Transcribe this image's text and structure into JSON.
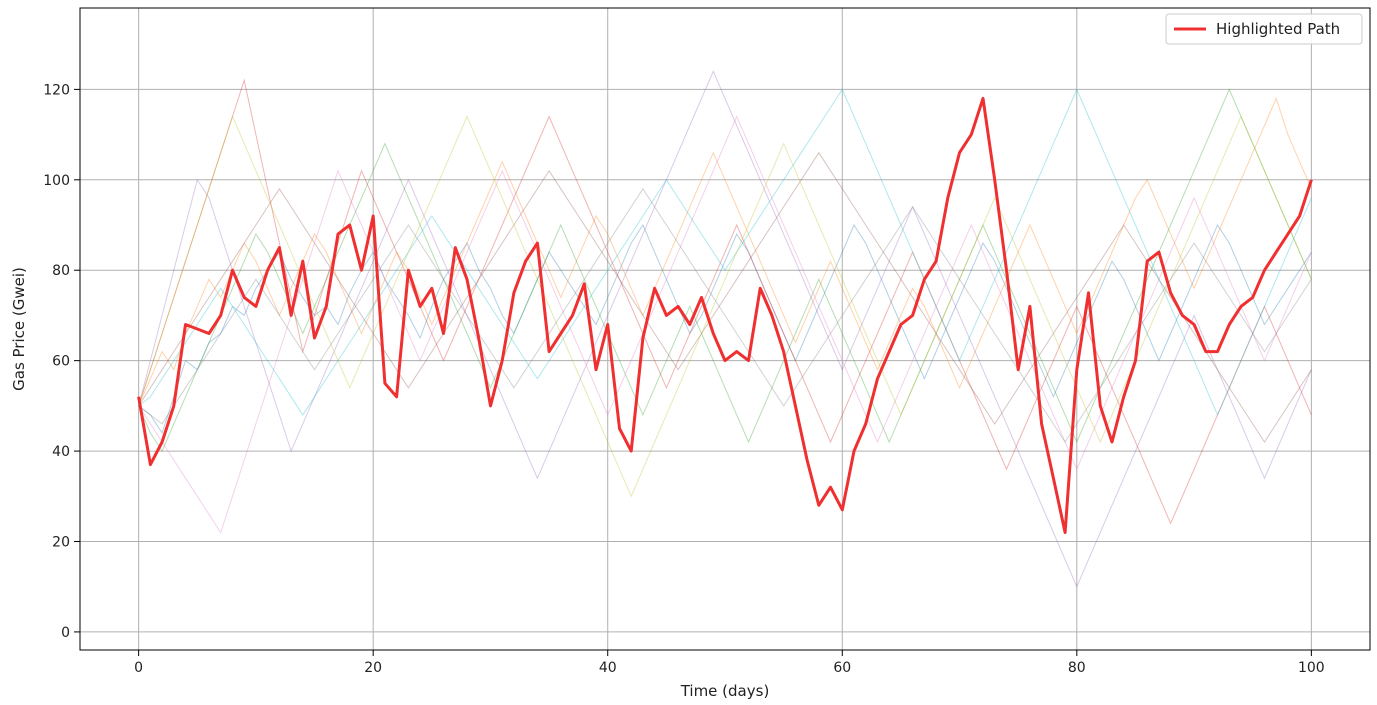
{
  "chart_data": {
    "type": "line",
    "xlabel": "Time (days)",
    "ylabel": "Gas Price (Gwei)",
    "xlim": [
      -5,
      105
    ],
    "ylim": [
      -4,
      138
    ],
    "x_ticks": [
      0,
      20,
      40,
      60,
      80,
      100
    ],
    "y_ticks": [
      0,
      20,
      40,
      60,
      80,
      100,
      120
    ],
    "grid": true,
    "legend_placement": "top-right",
    "highlighted": {
      "name": "Highlighted Path",
      "color": "#f03030",
      "x": [
        0,
        1,
        2,
        3,
        4,
        5,
        6,
        7,
        8,
        9,
        10,
        11,
        12,
        13,
        14,
        15,
        16,
        17,
        18,
        19,
        20,
        21,
        22,
        23,
        24,
        25,
        26,
        27,
        28,
        29,
        30,
        31,
        32,
        33,
        34,
        35,
        36,
        37,
        38,
        39,
        40,
        41,
        42,
        43,
        44,
        45,
        46,
        47,
        48,
        49,
        50,
        51,
        52,
        53,
        54,
        55,
        56,
        57,
        58,
        59,
        60,
        61,
        62,
        63,
        64,
        65,
        66,
        67,
        68,
        69,
        70,
        71,
        72,
        73,
        74,
        75,
        76,
        77,
        78,
        79,
        80,
        81,
        82,
        83,
        84,
        85,
        86,
        87,
        88,
        89,
        90,
        91,
        92,
        93,
        94,
        95,
        96,
        97,
        98,
        99,
        100
      ],
      "y": [
        52,
        37,
        42,
        50,
        68,
        67,
        66,
        70,
        80,
        74,
        72,
        80,
        85,
        70,
        82,
        65,
        72,
        88,
        90,
        80,
        92,
        55,
        52,
        80,
        72,
        76,
        66,
        85,
        78,
        65,
        50,
        60,
        75,
        82,
        86,
        62,
        66,
        70,
        77,
        58,
        68,
        45,
        40,
        65,
        76,
        70,
        72,
        68,
        74,
        66,
        60,
        62,
        60,
        76,
        70,
        62,
        50,
        38,
        28,
        32,
        27,
        40,
        46,
        56,
        62,
        68,
        70,
        78,
        82,
        96,
        106,
        110,
        118,
        100,
        80,
        58,
        72,
        46,
        34,
        22,
        58,
        75,
        50,
        42,
        52,
        60,
        82,
        84,
        75,
        70,
        68,
        62,
        62,
        68,
        72,
        74,
        80,
        84,
        88,
        92,
        100
      ]
    },
    "background_paths": [
      {
        "color": "#1f77b4",
        "y": [
          50,
          48,
          44,
          52,
          60,
          58,
          64,
          66,
          72,
          70,
          76,
          80,
          84,
          78,
          74,
          70,
          72,
          68,
          75,
          80,
          84,
          78,
          74,
          70,
          65,
          72,
          78,
          82,
          86,
          80,
          76,
          70,
          66,
          72,
          78,
          84,
          80,
          76,
          72,
          68,
          74,
          80,
          86,
          90,
          84,
          78,
          72,
          66,
          70,
          76,
          82,
          88,
          84,
          78,
          72,
          66,
          60,
          66,
          72,
          78,
          84,
          90,
          86,
          80,
          74,
          68,
          62,
          56,
          62,
          68,
          74,
          80,
          86,
          82,
          76,
          70,
          64,
          58,
          52,
          58,
          64,
          70,
          76,
          82,
          78,
          72,
          66,
          60,
          66,
          72,
          78,
          84,
          90,
          86,
          80,
          74,
          68,
          72,
          76,
          80,
          84
        ]
      },
      {
        "color": "#ff7f0e",
        "y": [
          50,
          56,
          62,
          58,
          66,
          72,
          78,
          74,
          80,
          86,
          82,
          76,
          70,
          76,
          82,
          88,
          84,
          78,
          72,
          66,
          72,
          78,
          84,
          80,
          74,
          68,
          74,
          80,
          86,
          92,
          98,
          104,
          98,
          92,
          86,
          80,
          74,
          80,
          86,
          92,
          88,
          82,
          76,
          70,
          76,
          82,
          88,
          94,
          100,
          106,
          100,
          94,
          88,
          82,
          76,
          70,
          64,
          70,
          76,
          82,
          76,
          70,
          64,
          58,
          64,
          70,
          76,
          72,
          66,
          60,
          54,
          60,
          66,
          72,
          78,
          84,
          90,
          84,
          78,
          72,
          66,
          72,
          78,
          84,
          90,
          96,
          100,
          94,
          88,
          82,
          76,
          82,
          88,
          94,
          100,
          106,
          112,
          118,
          110,
          104,
          98
        ]
      },
      {
        "color": "#2ca02c",
        "y": [
          50,
          44,
          40,
          46,
          52,
          58,
          64,
          70,
          76,
          82,
          88,
          84,
          78,
          72,
          66,
          72,
          78,
          84,
          90,
          96,
          102,
          108,
          102,
          96,
          90,
          84,
          78,
          72,
          66,
          60,
          54,
          60,
          66,
          72,
          78,
          84,
          90,
          84,
          78,
          72,
          66,
          60,
          54,
          48,
          54,
          60,
          66,
          72,
          66,
          60,
          54,
          48,
          42,
          48,
          54,
          60,
          66,
          72,
          78,
          72,
          66,
          60,
          54,
          48,
          42,
          48,
          54,
          60,
          66,
          72,
          78,
          84,
          90,
          84,
          78,
          72,
          66,
          60,
          54,
          48,
          42,
          48,
          54,
          60,
          66,
          72,
          78,
          84,
          90,
          96,
          102,
          108,
          114,
          120,
          114,
          108,
          102,
          96,
          90,
          84,
          78
        ]
      },
      {
        "color": "#d62728",
        "y": [
          50,
          58,
          66,
          74,
          82,
          90,
          98,
          106,
          114,
          122,
          110,
          98,
          86,
          74,
          62,
          70,
          78,
          86,
          94,
          102,
          96,
          90,
          84,
          78,
          72,
          66,
          60,
          66,
          72,
          78,
          84,
          90,
          96,
          102,
          108,
          114,
          108,
          102,
          96,
          90,
          84,
          78,
          72,
          66,
          60,
          54,
          60,
          66,
          72,
          78,
          84,
          90,
          84,
          78,
          72,
          66,
          60,
          54,
          48,
          42,
          48,
          54,
          60,
          66,
          72,
          78,
          84,
          78,
          72,
          66,
          60,
          54,
          48,
          42,
          36,
          42,
          48,
          54,
          60,
          66,
          72,
          66,
          60,
          54,
          48,
          42,
          36,
          30,
          24,
          30,
          36,
          42,
          48,
          54,
          60,
          66,
          72,
          66,
          60,
          54,
          48
        ]
      },
      {
        "color": "#9467bd",
        "y": [
          50,
          60,
          70,
          80,
          90,
          100,
          96,
          88,
          80,
          72,
          64,
          56,
          48,
          40,
          46,
          52,
          58,
          64,
          70,
          76,
          82,
          88,
          94,
          100,
          94,
          88,
          82,
          76,
          70,
          64,
          58,
          52,
          46,
          40,
          34,
          40,
          46,
          52,
          58,
          64,
          70,
          76,
          82,
          88,
          94,
          100,
          106,
          112,
          118,
          124,
          118,
          112,
          106,
          100,
          94,
          88,
          82,
          76,
          70,
          64,
          58,
          64,
          70,
          76,
          82,
          88,
          94,
          88,
          82,
          76,
          70,
          64,
          58,
          52,
          46,
          40,
          34,
          28,
          22,
          16,
          10,
          16,
          22,
          28,
          34,
          40,
          46,
          52,
          58,
          64,
          70,
          64,
          58,
          52,
          46,
          40,
          34,
          40,
          46,
          52,
          58
        ]
      },
      {
        "color": "#8c564b",
        "y": [
          50,
          54,
          58,
          62,
          66,
          70,
          74,
          78,
          82,
          86,
          90,
          94,
          98,
          94,
          90,
          86,
          82,
          78,
          74,
          70,
          66,
          62,
          58,
          54,
          58,
          62,
          66,
          70,
          74,
          78,
          82,
          86,
          90,
          94,
          98,
          102,
          98,
          94,
          90,
          86,
          82,
          78,
          74,
          70,
          66,
          62,
          58,
          62,
          66,
          70,
          74,
          78,
          82,
          86,
          90,
          94,
          98,
          102,
          106,
          102,
          98,
          94,
          90,
          86,
          82,
          78,
          74,
          70,
          66,
          62,
          58,
          54,
          50,
          46,
          50,
          54,
          58,
          62,
          66,
          70,
          74,
          78,
          82,
          86,
          90,
          86,
          82,
          78,
          74,
          70,
          66,
          62,
          58,
          54,
          50,
          46,
          42,
          46,
          50,
          54,
          58
        ]
      },
      {
        "color": "#e377c2",
        "y": [
          50,
          46,
          42,
          38,
          34,
          30,
          26,
          22,
          30,
          38,
          46,
          54,
          62,
          70,
          78,
          86,
          94,
          102,
          96,
          90,
          84,
          78,
          72,
          66,
          60,
          66,
          72,
          78,
          84,
          90,
          96,
          102,
          96,
          90,
          84,
          78,
          72,
          66,
          60,
          54,
          48,
          54,
          60,
          66,
          72,
          78,
          84,
          90,
          96,
          102,
          108,
          114,
          108,
          102,
          96,
          90,
          84,
          78,
          72,
          66,
          60,
          54,
          48,
          42,
          48,
          54,
          60,
          66,
          72,
          78,
          84,
          90,
          84,
          78,
          72,
          66,
          60,
          54,
          48,
          42,
          36,
          42,
          48,
          54,
          60,
          66,
          72,
          78,
          84,
          90,
          96,
          90,
          84,
          78,
          72,
          66,
          60,
          66,
          72,
          78,
          84
        ]
      },
      {
        "color": "#17becf",
        "y": [
          50,
          52,
          56,
          60,
          64,
          68,
          72,
          76,
          72,
          68,
          64,
          60,
          56,
          52,
          48,
          52,
          56,
          60,
          64,
          68,
          72,
          76,
          80,
          84,
          88,
          92,
          88,
          84,
          80,
          76,
          72,
          68,
          64,
          60,
          56,
          60,
          64,
          68,
          72,
          76,
          80,
          84,
          88,
          92,
          96,
          100,
          96,
          92,
          88,
          84,
          80,
          84,
          88,
          92,
          96,
          100,
          104,
          108,
          112,
          116,
          120,
          114,
          108,
          102,
          96,
          90,
          84,
          78,
          72,
          66,
          60,
          66,
          72,
          78,
          84,
          90,
          96,
          102,
          108,
          114,
          120,
          114,
          108,
          102,
          96,
          90,
          84,
          78,
          72,
          66,
          60,
          54,
          48,
          54,
          60,
          66,
          72,
          78,
          84,
          90,
          96
        ]
      },
      {
        "color": "#bcbd22",
        "y": [
          50,
          58,
          66,
          74,
          82,
          90,
          98,
          106,
          114,
          108,
          102,
          96,
          90,
          84,
          78,
          72,
          66,
          60,
          54,
          60,
          66,
          72,
          78,
          84,
          90,
          96,
          102,
          108,
          114,
          108,
          102,
          96,
          90,
          84,
          78,
          72,
          66,
          60,
          54,
          48,
          42,
          36,
          30,
          36,
          42,
          48,
          54,
          60,
          66,
          72,
          78,
          84,
          90,
          96,
          102,
          108,
          102,
          96,
          90,
          84,
          78,
          72,
          66,
          60,
          54,
          48,
          54,
          60,
          66,
          72,
          78,
          84,
          90,
          96,
          90,
          84,
          78,
          72,
          66,
          60,
          54,
          48,
          42,
          48,
          54,
          60,
          66,
          72,
          78,
          84,
          90,
          96,
          102,
          108,
          114,
          108,
          102,
          96,
          90,
          84,
          78
        ]
      },
      {
        "color": "#7f7f7f",
        "y": [
          50,
          48,
          46,
          50,
          54,
          58,
          62,
          66,
          70,
          74,
          78,
          74,
          70,
          66,
          62,
          58,
          62,
          66,
          70,
          74,
          78,
          82,
          86,
          90,
          86,
          82,
          78,
          74,
          70,
          66,
          62,
          58,
          54,
          58,
          62,
          66,
          70,
          74,
          78,
          82,
          86,
          90,
          94,
          98,
          94,
          90,
          86,
          82,
          78,
          74,
          70,
          66,
          62,
          58,
          54,
          50,
          54,
          58,
          62,
          66,
          70,
          74,
          78,
          82,
          86,
          90,
          94,
          90,
          86,
          82,
          78,
          74,
          70,
          66,
          62,
          58,
          54,
          50,
          46,
          42,
          46,
          50,
          54,
          58,
          62,
          66,
          70,
          74,
          78,
          82,
          86,
          82,
          78,
          74,
          70,
          66,
          62,
          66,
          70,
          74,
          78
        ]
      }
    ]
  }
}
